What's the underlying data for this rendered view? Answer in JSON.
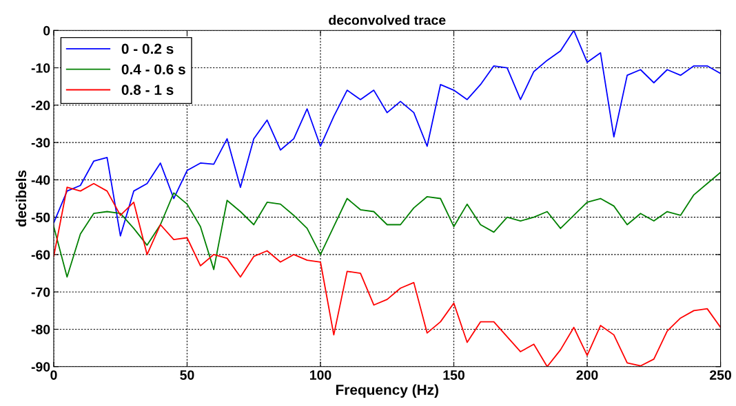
{
  "chart_data": {
    "type": "line",
    "title": "deconvolved trace",
    "xlabel": "Frequency (Hz)",
    "ylabel": "decibels",
    "x": [
      0,
      5,
      10,
      15,
      20,
      25,
      30,
      35,
      40,
      45,
      50,
      55,
      60,
      65,
      70,
      75,
      80,
      85,
      90,
      95,
      100,
      105,
      110,
      115,
      120,
      125,
      130,
      135,
      140,
      145,
      150,
      155,
      160,
      165,
      170,
      175,
      180,
      185,
      190,
      195,
      200,
      205,
      210,
      215,
      220,
      225,
      230,
      235,
      240,
      245,
      250
    ],
    "series": [
      {
        "name": "0 - 0.2 s",
        "color": "#0000ff",
        "values": [
          -51.5,
          -43,
          -41.5,
          -35,
          -34,
          -55,
          -43,
          -41,
          -35.5,
          -45,
          -37.5,
          -35.5,
          -35.8,
          -29,
          -42,
          -29,
          -24,
          -32,
          -29,
          -21,
          -31,
          -23,
          -16,
          -18.5,
          -16,
          -22,
          -19,
          -22,
          -31,
          -14.5,
          -16,
          -18.5,
          -14.5,
          -9.5,
          -10,
          -18.5,
          -11,
          -8,
          -5.5,
          0,
          -8.5,
          -6,
          -28.5,
          -12,
          -10.5,
          -14,
          -10.5,
          -12,
          -9.5,
          -9.5,
          -11.5
        ]
      },
      {
        "name": "0.4 - 0.6 s",
        "color": "#008000",
        "values": [
          -52.5,
          -66,
          -54.5,
          -49,
          -48.5,
          -49,
          -53,
          -57.5,
          -52,
          -43.5,
          -46.5,
          -52.5,
          -64,
          -45.5,
          -48.5,
          -52,
          -46,
          -46.5,
          -49.5,
          -53,
          -60,
          -52.5,
          -45,
          -48,
          -48.5,
          -52,
          -52,
          -47.5,
          -44.5,
          -45,
          -52.5,
          -46.5,
          -52,
          -54,
          -50,
          -51,
          -50,
          -48.5,
          -53,
          -49.5,
          -46,
          -45,
          -47,
          -52,
          -49,
          -51,
          -48.5,
          -49.5,
          -44,
          -41,
          -38
        ]
      },
      {
        "name": "0.8 - 1 s",
        "color": "#ff0000",
        "values": [
          -60.5,
          -42,
          -43,
          -41,
          -43,
          -49.5,
          -46,
          -60,
          -52,
          -56,
          -55.5,
          -63,
          -60,
          -61,
          -66,
          -60.5,
          -59,
          -62,
          -60,
          -61.5,
          -62,
          -81.5,
          -64.5,
          -65,
          -73.5,
          -72,
          -69,
          -67.5,
          -81,
          -78,
          -73,
          -83.5,
          -78,
          -78,
          -82,
          -86,
          -84,
          -90,
          -85.5,
          -79.5,
          -87,
          -79,
          -81.5,
          -89,
          -89.8,
          -88,
          -80.5,
          -77,
          -75,
          -74.5,
          -79.5
        ]
      }
    ],
    "xlim": [
      0,
      250
    ],
    "xticks": [
      0,
      50,
      100,
      150,
      200,
      250
    ],
    "ylim": [
      -90,
      0
    ],
    "yticks": [
      -90,
      -80,
      -70,
      -60,
      -50,
      -40,
      -30,
      -20,
      -10,
      0
    ],
    "grid": true,
    "legend": "top left",
    "marker": "none",
    "line_style": "solid"
  }
}
